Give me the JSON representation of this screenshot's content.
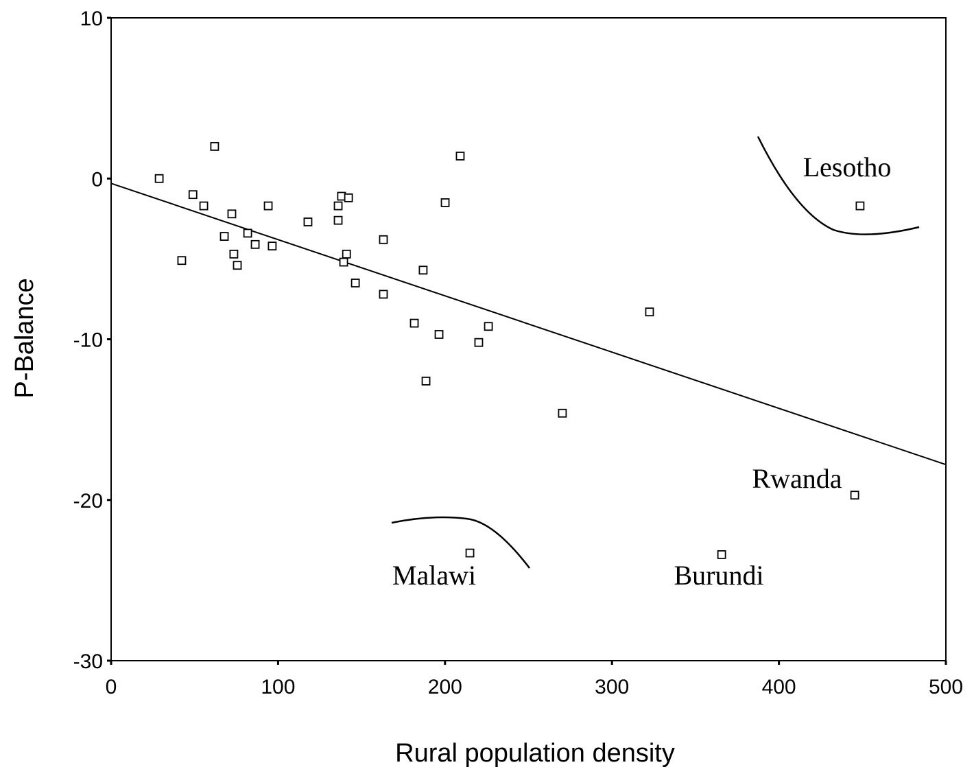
{
  "chart_data": {
    "type": "scatter",
    "x_label": "Rural population density",
    "y_label": "P-Balance",
    "xlim": [
      0,
      500
    ],
    "xticks": [
      0,
      100,
      200,
      300,
      400,
      500
    ],
    "ylim": [
      -30,
      10
    ],
    "yticks": [
      10,
      0,
      -10,
      -20,
      -30
    ],
    "color": "#000000",
    "x": [
      28.8,
      62,
      49,
      55.5,
      42.3,
      72.3,
      67.8,
      73.5,
      75.6,
      81.8,
      86.3,
      94.1,
      96.5,
      117.9,
      136,
      136,
      138,
      142.2,
      139.3,
      141,
      146.3,
      163.1,
      163.1,
      186.9,
      181.6,
      188.6,
      196.4,
      200.1,
      209.1,
      220.2,
      226,
      270.3,
      322.5,
      448.6,
      445.4,
      365.7,
      214.9
    ],
    "values": [
      0.0,
      2.0,
      -1.0,
      -1.7,
      -5.1,
      -2.2,
      -3.6,
      -4.7,
      -5.4,
      -3.4,
      -4.1,
      -1.7,
      -4.2,
      -2.7,
      -2.6,
      -1.7,
      -1.1,
      -1.2,
      -5.2,
      -4.7,
      -6.5,
      -3.8,
      -7.2,
      -5.7,
      -9.0,
      -12.6,
      -9.7,
      -1.5,
      1.4,
      -10.2,
      -9.2,
      -14.6,
      -8.3,
      -1.7,
      -19.7,
      -23.4,
      -23.3
    ],
    "fit": {
      "x": [
        0,
        500
      ],
      "values": [
        -0.3,
        -17.8
      ]
    },
    "annotations": [
      "Lesotho",
      "Rwanda",
      "Burundi",
      "Malawi"
    ]
  }
}
